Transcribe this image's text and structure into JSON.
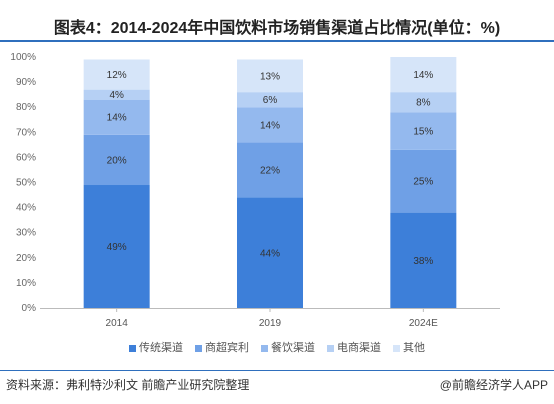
{
  "title": "图表4：2014-2024年中国饮料市场销售渠道占比情况(单位：%)",
  "footer": {
    "source": "资料来源：弗利特沙利文 前瞻产业研究院整理",
    "brand": "@前瞻经济学人APP"
  },
  "chart_data": {
    "type": "bar",
    "stacked": true,
    "categories": [
      "2014",
      "2019",
      "2024E"
    ],
    "series": [
      {
        "name": "传统渠道",
        "values": [
          49,
          44,
          38
        ],
        "labels": [
          "49%",
          "44%",
          "38%"
        ],
        "color": "#3d7fd9"
      },
      {
        "name": "商超宾利",
        "values": [
          20,
          22,
          25
        ],
        "labels": [
          "20%",
          "22%",
          "25%"
        ],
        "color": "#6fa0e6"
      },
      {
        "name": "餐饮渠道",
        "values": [
          14,
          14,
          15
        ],
        "labels": [
          "14%",
          "14%",
          "15%"
        ],
        "color": "#94b9ee"
      },
      {
        "name": "电商渠道",
        "values": [
          4,
          6,
          8
        ],
        "labels": [
          "4%",
          "6%",
          "8%"
        ],
        "color": "#b6d0f4"
      },
      {
        "name": "其他",
        "values": [
          12,
          13,
          14
        ],
        "labels": [
          "12%",
          "13%",
          "14%"
        ],
        "color": "#d6e5f9"
      }
    ],
    "y_ticks": [
      "0%",
      "10%",
      "20%",
      "30%",
      "40%",
      "50%",
      "60%",
      "70%",
      "80%",
      "90%",
      "100%"
    ],
    "ylim": [
      0,
      100
    ],
    "legend_position": "bottom",
    "grid": false
  }
}
